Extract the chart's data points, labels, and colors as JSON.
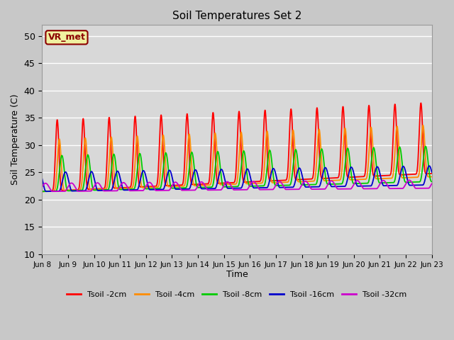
{
  "title": "Soil Temperatures Set 2",
  "xlabel": "Time",
  "ylabel": "Soil Temperature (C)",
  "ylim": [
    10,
    52
  ],
  "background_color": "#d8d8d8",
  "plot_bg": "#d8d8d8",
  "annotation_text": "VR_met",
  "annotation_color": "#8B0000",
  "annotation_bg": "#f0f0a0",
  "annotation_border": "#8B0000",
  "series": [
    {
      "label": "Tsoil -2cm",
      "color": "#ff0000",
      "lw": 1.3
    },
    {
      "label": "Tsoil -4cm",
      "color": "#ff8c00",
      "lw": 1.3
    },
    {
      "label": "Tsoil -8cm",
      "color": "#00cc00",
      "lw": 1.3
    },
    {
      "label": "Tsoil -16cm",
      "color": "#0000cc",
      "lw": 1.3
    },
    {
      "label": "Tsoil -32cm",
      "color": "#cc00cc",
      "lw": 1.3
    }
  ],
  "xtick_labels": [
    "Jun 8",
    "Jun 9",
    "Jun 10",
    "Jun 11",
    "Jun 12",
    "Jun 13",
    "Jun 14",
    "Jun 15",
    "Jun 16",
    "Jun 17",
    "Jun 18",
    "Jun 19",
    "Jun 20",
    "Jun 21",
    "Jun 22",
    "Jun 23"
  ],
  "num_days": 15,
  "points_per_day": 240,
  "base_temp": 21.5,
  "amplitudes": [
    13.0,
    9.5,
    6.5,
    3.5,
    1.5
  ],
  "phase_shifts": [
    0.0,
    0.08,
    0.18,
    0.32,
    0.55
  ],
  "sharpness": [
    6,
    5,
    3,
    2,
    1.5
  ],
  "trend_slopes": [
    0.22,
    0.18,
    0.12,
    0.08,
    0.04
  ],
  "min_temps": [
    14.5,
    17.0,
    19.0,
    20.5,
    21.5
  ],
  "yticks": [
    10,
    15,
    20,
    25,
    30,
    35,
    40,
    45,
    50
  ]
}
